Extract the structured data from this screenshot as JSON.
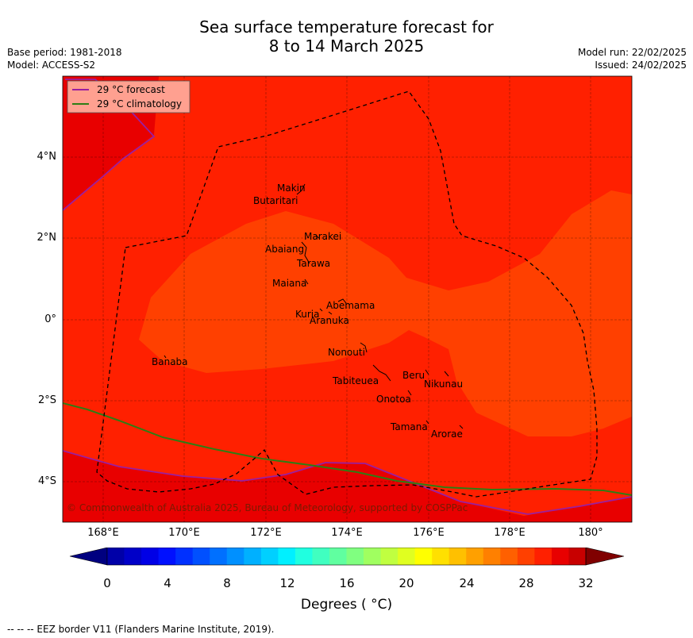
{
  "title_line1": "Sea surface temperature forecast for",
  "title_line2": "8 to 14 March 2025",
  "base_period": "Base period: 1981-2018",
  "model": "Model: ACCESS-S2",
  "model_run": "Model run: 22/02/2025",
  "issued": "Issued: 24/02/2025",
  "legend": {
    "forecast_label": "29 °C  forecast",
    "climatology_label": "29 °C  climatology",
    "forecast_color": "#9b1fa0",
    "climatology_color": "#2e7d14"
  },
  "y_ticks": [
    "4°N",
    "2°N",
    "0°",
    "2°S",
    "4°S"
  ],
  "x_ticks": [
    "168°E",
    "170°E",
    "172°E",
    "174°E",
    "176°E",
    "178°E",
    "180°"
  ],
  "places": [
    {
      "name": "Makin"
    },
    {
      "name": "Butaritari"
    },
    {
      "name": "Marakei"
    },
    {
      "name": "Abaiang"
    },
    {
      "name": "Tarawa"
    },
    {
      "name": "Maiana"
    },
    {
      "name": "Abemama"
    },
    {
      "name": "Kuria"
    },
    {
      "name": "Aranuka"
    },
    {
      "name": "Nonouti"
    },
    {
      "name": "Banaba"
    },
    {
      "name": "Beru"
    },
    {
      "name": "Tabiteuea"
    },
    {
      "name": "Nikunau"
    },
    {
      "name": "Onotoa"
    },
    {
      "name": "Tamana"
    },
    {
      "name": "Arorae"
    }
  ],
  "copyright": "© Commonwealth of Australia 2025, Bureau of Meteorology, supported by COSPPac",
  "colorbar": {
    "ticks": [
      "0",
      "4",
      "8",
      "12",
      "16",
      "20",
      "24",
      "28",
      "32"
    ],
    "label": "Degrees ( °C)",
    "colors": [
      "#0000a8",
      "#0000c8",
      "#0000e6",
      "#0010ff",
      "#0030ff",
      "#0050ff",
      "#0070ff",
      "#0090ff",
      "#00b0ff",
      "#00d0ff",
      "#00f0ff",
      "#20ffe0",
      "#40ffc0",
      "#60ffa0",
      "#80ff80",
      "#a0ff60",
      "#c0ff40",
      "#e0ff20",
      "#ffff00",
      "#ffe000",
      "#ffc000",
      "#ffa000",
      "#ff8000",
      "#ff6000",
      "#ff4000",
      "#ff2000",
      "#e80000",
      "#c80000"
    ],
    "under_color": "#000080",
    "over_color": "#800000"
  },
  "map_colors": {
    "sst_28_5": "#ff2000",
    "sst_28": "#ff4000",
    "sst_29": "#e80000"
  },
  "footer": "--  --  -- EEZ border V11 (Flanders Marine Institute, 2019)."
}
